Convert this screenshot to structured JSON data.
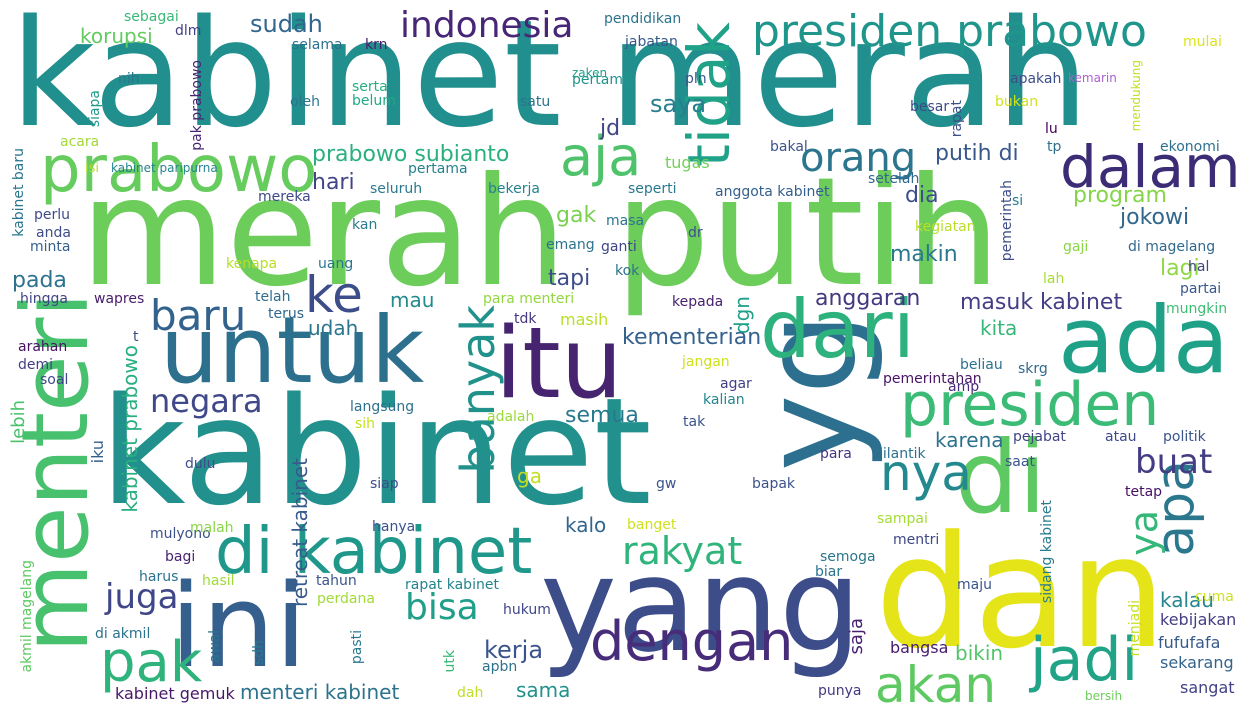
{
  "words": [
    {
      "text": "kabinet merah",
      "color": "#218f8d"
    },
    {
      "text": "merah putih",
      "color": "#6ccd5a"
    },
    {
      "text": "kabinet",
      "color": "#22908c"
    },
    {
      "text": "yang",
      "color": "#3c4d8a"
    },
    {
      "text": "dan",
      "color": "#e5e419"
    },
    {
      "text": "ini",
      "color": "#35608d"
    },
    {
      "text": "yg",
      "color": "#2c6f8e"
    },
    {
      "text": "untuk",
      "color": "#2d708e"
    },
    {
      "text": "itu",
      "color": "#46246f"
    },
    {
      "text": "ada",
      "color": "#1fa188"
    },
    {
      "text": "di",
      "color": "#5ec962"
    },
    {
      "text": "menteri",
      "color": "#48c16e"
    },
    {
      "text": "dari",
      "color": "#2db27d"
    },
    {
      "text": "prabowo",
      "color": "#66cc5d"
    },
    {
      "text": "di kabinet",
      "color": "#1f978b"
    },
    {
      "text": "dalam",
      "color": "#3b2c75"
    },
    {
      "text": "presiden",
      "color": "#3bbb75"
    },
    {
      "text": "presiden prabowo",
      "color": "#1f958b"
    },
    {
      "text": "tidak",
      "color": "#1fa287"
    },
    {
      "text": "aja",
      "color": "#4ec36b"
    },
    {
      "text": "orang",
      "color": "#2b758e"
    },
    {
      "text": "indonesia",
      "color": "#482677"
    },
    {
      "text": "dengan",
      "color": "#472c7a"
    },
    {
      "text": "jadi",
      "color": "#20a386"
    },
    {
      "text": "akan",
      "color": "#5ec962"
    },
    {
      "text": "pak",
      "color": "#2eb37c"
    },
    {
      "text": "nya",
      "color": "#23898e"
    },
    {
      "text": "apa",
      "color": "#2a778e"
    },
    {
      "text": "ke",
      "color": "#3d4d8a"
    },
    {
      "text": "banyak",
      "color": "#21918c"
    },
    {
      "text": "baru",
      "color": "#33638d"
    },
    {
      "text": "negara",
      "color": "#3f4889"
    },
    {
      "text": "rakyat",
      "color": "#2fb47c"
    },
    {
      "text": "juga",
      "color": "#3f4788"
    },
    {
      "text": "bisa",
      "color": "#1f9e89"
    },
    {
      "text": "buat",
      "color": "#433d84"
    },
    {
      "text": "ya",
      "color": "#35b779"
    },
    {
      "text": "kerja",
      "color": "#3a548c"
    },
    {
      "text": "sudah",
      "color": "#31668e"
    },
    {
      "text": "saya",
      "color": "#277f8e"
    },
    {
      "text": "korupsi",
      "color": "#63cb5f"
    },
    {
      "text": "prabowo subianto",
      "color": "#2ab07f"
    },
    {
      "text": "hari",
      "color": "#414487"
    },
    {
      "text": "putih di",
      "color": "#38588c"
    },
    {
      "text": "jd",
      "color": "#404688"
    },
    {
      "text": "gak",
      "color": "#7ad151"
    },
    {
      "text": "tapi",
      "color": "#3d4e8a"
    },
    {
      "text": "jokowi",
      "color": "#31678e"
    },
    {
      "text": "makin",
      "color": "#2a788e"
    },
    {
      "text": "lagi",
      "color": "#8fd744"
    },
    {
      "text": "program",
      "color": "#86d549"
    },
    {
      "text": "dia",
      "color": "#3e4c8a"
    },
    {
      "text": "anggaran",
      "color": "#453781"
    },
    {
      "text": "masuk kabinet",
      "color": "#433e85"
    },
    {
      "text": "kementerian",
      "color": "#34618d"
    },
    {
      "text": "semua",
      "color": "#29798e"
    },
    {
      "text": "karena",
      "color": "#2c718e"
    },
    {
      "text": "kalau",
      "color": "#24868e"
    },
    {
      "text": "sama",
      "color": "#21918c"
    },
    {
      "text": "kalo",
      "color": "#31668e"
    },
    {
      "text": "bikin",
      "color": "#52c569"
    },
    {
      "text": "menteri kabinet",
      "color": "#2c738e"
    },
    {
      "text": "pada",
      "color": "#2c728e"
    },
    {
      "text": "mau",
      "color": "#228c8d"
    },
    {
      "text": "udah",
      "color": "#2a768e"
    },
    {
      "text": "dgn",
      "color": "#1fa088"
    },
    {
      "text": "kita",
      "color": "#37b878"
    },
    {
      "text": "masih",
      "color": "#b8de29"
    },
    {
      "text": "ga",
      "color": "#c2df23"
    },
    {
      "text": "kabinet prabowo",
      "color": "#29af7f"
    },
    {
      "text": "retreat kabinet",
      "color": "#375b8d"
    },
    {
      "text": "lebih",
      "color": "#4ac16d"
    },
    {
      "text": "iku",
      "color": "#34608d"
    },
    {
      "text": "saja",
      "color": "#482173"
    },
    {
      "text": "bangsa",
      "color": "#481b6d"
    },
    {
      "text": "sangat",
      "color": "#424186"
    },
    {
      "text": "sekarang",
      "color": "#32648e"
    },
    {
      "text": "fufufafa",
      "color": "#375a8c"
    },
    {
      "text": "kebijakan",
      "color": "#433e85"
    },
    {
      "text": "cuma",
      "color": "#cde11d"
    },
    {
      "text": "sidang kabinet",
      "color": "#287c8e"
    },
    {
      "text": "tetap",
      "color": "#471063"
    },
    {
      "text": "kabinet gemuk",
      "color": "#481769"
    },
    {
      "text": "sebagai",
      "color": "#38b977"
    },
    {
      "text": "dlm",
      "color": "#424086"
    },
    {
      "text": "pendidikan",
      "color": "#2b748e"
    },
    {
      "text": "jabatan",
      "color": "#38598c"
    },
    {
      "text": "rapat",
      "color": "#3b528b"
    },
    {
      "text": "mulai",
      "color": "#dde318"
    },
    {
      "text": "selama",
      "color": "#2c718e"
    },
    {
      "text": "krn",
      "color": "#481a6c"
    },
    {
      "text": "siapa",
      "color": "#1e9b8a"
    },
    {
      "text": "nih",
      "color": "#2a768e"
    },
    {
      "text": "pak prabowo",
      "color": "#482475"
    },
    {
      "text": "serta",
      "color": "#29af7f"
    },
    {
      "text": "belum",
      "color": "#22a884"
    },
    {
      "text": "pertama",
      "color": "#20928c"
    },
    {
      "text": "zaken",
      "color": "#1f9e89"
    },
    {
      "text": "pln",
      "color": "#39568c"
    },
    {
      "text": "apakah",
      "color": "#3d4e8a"
    },
    {
      "text": "kemarin",
      "color": "#ab5fd0"
    },
    {
      "text": "mendukung",
      "color": "#c0df25"
    },
    {
      "text": "oleh",
      "color": "#2a768e"
    },
    {
      "text": "satu",
      "color": "#2c728e"
    },
    {
      "text": "besar",
      "color": "#3e4a89"
    },
    {
      "text": "bukan",
      "color": "#d2e21b"
    },
    {
      "text": "lu",
      "color": "#440154"
    },
    {
      "text": "acara",
      "color": "#a2da37"
    },
    {
      "text": "bakal",
      "color": "#3b528b"
    },
    {
      "text": "tugas",
      "color": "#73d056"
    },
    {
      "text": "tp",
      "color": "#2d708e"
    },
    {
      "text": "ekonomi",
      "color": "#2c728e"
    },
    {
      "text": "kabinet baru",
      "color": "#2a768e"
    },
    {
      "text": "isi",
      "color": "#b5de2b"
    },
    {
      "text": "kabinet paripurna",
      "color": "#25848e"
    },
    {
      "text": "pertama",
      "color": "#26828e"
    },
    {
      "text": "seluruh",
      "color": "#2a788e"
    },
    {
      "text": "bekerja",
      "color": "#26828e"
    },
    {
      "text": "seperti",
      "color": "#29798e"
    },
    {
      "text": "anggota kabinet",
      "color": "#34608d"
    },
    {
      "text": "setelah",
      "color": "#31688e"
    },
    {
      "text": "pemerintah",
      "color": "#3d4e8a"
    },
    {
      "text": "si",
      "color": "#287d8e"
    },
    {
      "text": "perlu",
      "color": "#3e4989"
    },
    {
      "text": "mereka",
      "color": "#3e4989"
    },
    {
      "text": "anda",
      "color": "#3e4c8a"
    },
    {
      "text": "minta",
      "color": "#34618d"
    },
    {
      "text": "kan",
      "color": "#287c8e"
    },
    {
      "text": "masa",
      "color": "#2c738e"
    },
    {
      "text": "dr",
      "color": "#3c4f8a"
    },
    {
      "text": "emang",
      "color": "#2c738e"
    },
    {
      "text": "ganti",
      "color": "#404588"
    },
    {
      "text": "kegiatan",
      "color": "#bade28"
    },
    {
      "text": "gaji",
      "color": "#89d548"
    },
    {
      "text": "di magelang",
      "color": "#31688e"
    },
    {
      "text": "hal",
      "color": "#404588"
    },
    {
      "text": "kenapa",
      "color": "#b8de29"
    },
    {
      "text": "uang",
      "color": "#2a768e"
    },
    {
      "text": "kok",
      "color": "#2d718e"
    },
    {
      "text": "lah",
      "color": "#a8db34"
    },
    {
      "text": "partai",
      "color": "#38598c"
    },
    {
      "text": "hingga",
      "color": "#414487"
    },
    {
      "text": "wapres",
      "color": "#481c6e"
    },
    {
      "text": "telah",
      "color": "#2f6c8e"
    },
    {
      "text": "para menteri",
      "color": "#92d741"
    },
    {
      "text": "kepada",
      "color": "#482071"
    },
    {
      "text": "mungkin",
      "color": "#3dbc74"
    },
    {
      "text": "terus",
      "color": "#31668e"
    },
    {
      "text": "tdk",
      "color": "#453882"
    },
    {
      "text": "arahan",
      "color": "#471365"
    },
    {
      "text": "t",
      "color": "#3d4e8a"
    },
    {
      "text": "demi",
      "color": "#433e85"
    },
    {
      "text": "soal",
      "color": "#3e4a89"
    },
    {
      "text": "jangan",
      "color": "#cde11d"
    },
    {
      "text": "beliau",
      "color": "#2c738e"
    },
    {
      "text": "amp",
      "color": "#472d7b"
    },
    {
      "text": "skrg",
      "color": "#31688e"
    },
    {
      "text": "agar",
      "color": "#424086"
    },
    {
      "text": "pemerintahan",
      "color": "#481467"
    },
    {
      "text": "langsung",
      "color": "#2d718e"
    },
    {
      "text": "kalian",
      "color": "#24878e"
    },
    {
      "text": "sih",
      "color": "#c5e021"
    },
    {
      "text": "adalah",
      "color": "#9bd93c"
    },
    {
      "text": "tak",
      "color": "#3b528b"
    },
    {
      "text": "pejabat",
      "color": "#414487"
    },
    {
      "text": "atau",
      "color": "#3e4a89"
    },
    {
      "text": "politik",
      "color": "#3a548c"
    },
    {
      "text": "dulu",
      "color": "#3e4c8a"
    },
    {
      "text": "para",
      "color": "#463480"
    },
    {
      "text": "dilantik",
      "color": "#2c728e"
    },
    {
      "text": "saat",
      "color": "#3a548c"
    },
    {
      "text": "siap",
      "color": "#3e4c8a"
    },
    {
      "text": "gw",
      "color": "#3b528b"
    },
    {
      "text": "bapak",
      "color": "#3b528b"
    },
    {
      "text": "sampai",
      "color": "#a5db36"
    },
    {
      "text": "mulyono",
      "color": "#3b528b"
    },
    {
      "text": "malah",
      "color": "#89d548"
    },
    {
      "text": "banget",
      "color": "#d0e11c"
    },
    {
      "text": "hanya",
      "color": "#3b528b"
    },
    {
      "text": "mentri",
      "color": "#3f4788"
    },
    {
      "text": "semoga",
      "color": "#2a768e"
    },
    {
      "text": "biar",
      "color": "#2c738e"
    },
    {
      "text": "maju",
      "color": "#39568c"
    },
    {
      "text": "bagi",
      "color": "#481f70"
    },
    {
      "text": "harus",
      "color": "#2c718e"
    },
    {
      "text": "hasil",
      "color": "#a0da39"
    },
    {
      "text": "tahun",
      "color": "#3a548c"
    },
    {
      "text": "rapat kabinet",
      "color": "#25838e"
    },
    {
      "text": "perdana",
      "color": "#a2da37"
    },
    {
      "text": "hukum",
      "color": "#404688"
    },
    {
      "text": "akmil magelang",
      "color": "#5ec962"
    },
    {
      "text": "di akmil",
      "color": "#2c728e"
    },
    {
      "text": "awal",
      "color": "#2c738e"
    },
    {
      "text": "sdh",
      "color": "#29798e"
    },
    {
      "text": "pasti",
      "color": "#2a788e"
    },
    {
      "text": "utk",
      "color": "#3aba76"
    },
    {
      "text": "apbn",
      "color": "#2c728e"
    },
    {
      "text": "dah",
      "color": "#bddf26"
    },
    {
      "text": "punya",
      "color": "#453781"
    },
    {
      "text": "menjadi",
      "color": "#c8e020"
    },
    {
      "text": "bersih",
      "color": "#6ccd5a"
    }
  ]
}
